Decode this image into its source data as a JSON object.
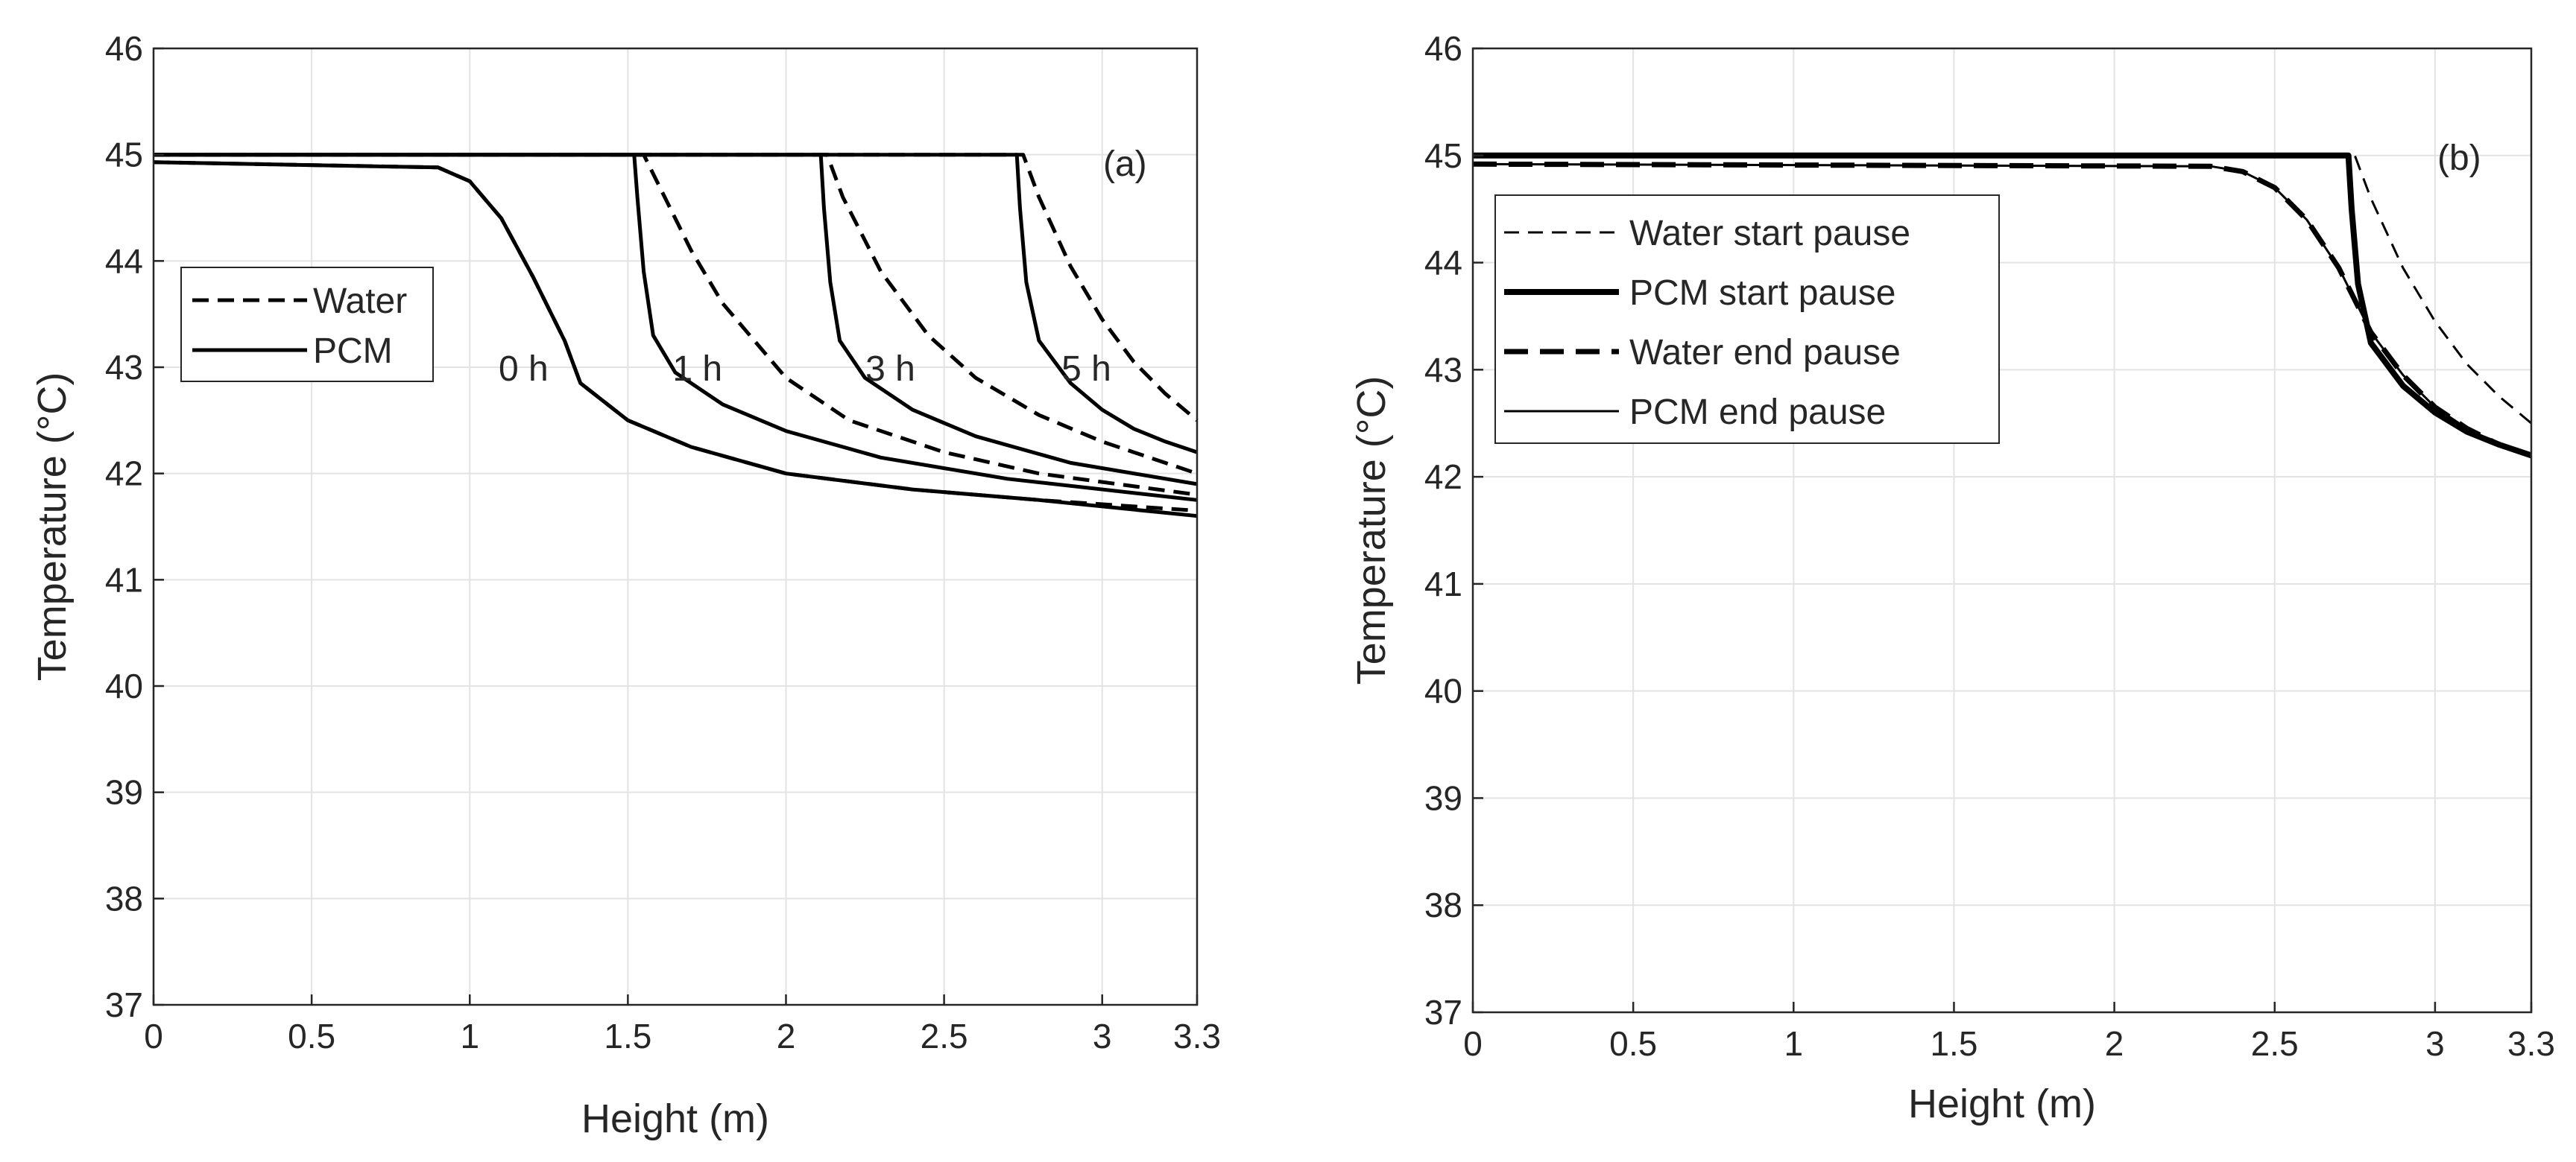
{
  "colors": {
    "line": "#000000",
    "grid": "#e3e3e3",
    "axis": "#262626",
    "background": "#ffffff"
  },
  "chart_data": [
    {
      "type": "line",
      "panel_label": "(a)",
      "xlabel": "Height (m)",
      "ylabel": "Temperature (°C)",
      "xlim": [
        0,
        3.3
      ],
      "ylim": [
        37,
        46
      ],
      "xticks": [
        0,
        0.5,
        1,
        1.5,
        2,
        2.5,
        3,
        3.3
      ],
      "xtick_labels": [
        "0",
        "0.5",
        "1",
        "1.5",
        "2",
        "2.5",
        "3",
        "3.3"
      ],
      "yticks": [
        37,
        38,
        39,
        40,
        41,
        42,
        43,
        44,
        45,
        46
      ],
      "ytick_labels": [
        "37",
        "38",
        "39",
        "40",
        "41",
        "42",
        "43",
        "44",
        "45",
        "46"
      ],
      "grid": true,
      "legend": {
        "position": "top-left",
        "entries": [
          {
            "label": "Water",
            "style": "dashed"
          },
          {
            "label": "PCM",
            "style": "solid"
          }
        ]
      },
      "annotations": [
        {
          "text": "0 h",
          "x": 1.17,
          "y": 43.0
        },
        {
          "text": "1 h",
          "x": 1.72,
          "y": 43.0
        },
        {
          "text": "3 h",
          "x": 2.33,
          "y": 43.0
        },
        {
          "text": "5 h",
          "x": 2.95,
          "y": 43.0
        }
      ],
      "series": [
        {
          "name": "Water 0 h",
          "style": "dashed",
          "width": 5,
          "x": [
            0,
            0.9,
            1.0,
            1.1,
            1.2,
            1.3,
            1.35,
            1.5,
            1.7,
            2.0,
            2.4,
            2.8,
            3.3
          ],
          "y": [
            44.93,
            44.88,
            44.75,
            44.4,
            43.85,
            43.25,
            42.85,
            42.5,
            42.25,
            42.0,
            41.85,
            41.75,
            41.65
          ]
        },
        {
          "name": "PCM 0 h",
          "style": "solid",
          "width": 5,
          "x": [
            0,
            0.9,
            1.0,
            1.1,
            1.2,
            1.3,
            1.35,
            1.5,
            1.7,
            2.0,
            2.4,
            2.8,
            3.3
          ],
          "y": [
            44.93,
            44.88,
            44.75,
            44.4,
            43.85,
            43.25,
            42.85,
            42.5,
            42.25,
            42.0,
            41.85,
            41.75,
            41.6
          ]
        },
        {
          "name": "Water 1 h",
          "style": "dashed",
          "width": 5,
          "x": [
            0,
            1.55,
            1.6,
            1.7,
            1.8,
            2.0,
            2.2,
            2.5,
            2.8,
            3.3
          ],
          "y": [
            45,
            45,
            44.7,
            44.1,
            43.6,
            42.9,
            42.5,
            42.2,
            42.0,
            41.8
          ]
        },
        {
          "name": "PCM 1 h",
          "style": "solid",
          "width": 5,
          "x": [
            0,
            1.52,
            1.53,
            1.55,
            1.58,
            1.65,
            1.8,
            2.0,
            2.3,
            2.7,
            3.3
          ],
          "y": [
            45,
            45,
            44.6,
            43.9,
            43.3,
            42.95,
            42.65,
            42.4,
            42.15,
            41.95,
            41.75
          ]
        },
        {
          "name": "Water 3 h",
          "style": "dashed",
          "width": 5,
          "x": [
            0,
            2.13,
            2.18,
            2.3,
            2.45,
            2.6,
            2.8,
            3.0,
            3.3
          ],
          "y": [
            45,
            45,
            44.6,
            43.9,
            43.3,
            42.9,
            42.55,
            42.3,
            42.0
          ]
        },
        {
          "name": "PCM 3 h",
          "style": "solid",
          "width": 5,
          "x": [
            0,
            2.11,
            2.12,
            2.14,
            2.17,
            2.25,
            2.4,
            2.6,
            2.9,
            3.3
          ],
          "y": [
            45,
            45,
            44.5,
            43.8,
            43.25,
            42.9,
            42.6,
            42.35,
            42.1,
            41.9
          ]
        },
        {
          "name": "Water 5 h",
          "style": "dashed",
          "width": 5,
          "x": [
            0,
            2.75,
            2.8,
            2.9,
            3.0,
            3.1,
            3.2,
            3.3
          ],
          "y": [
            45,
            45,
            44.6,
            43.95,
            43.45,
            43.05,
            42.75,
            42.5
          ]
        },
        {
          "name": "PCM 5 h",
          "style": "solid",
          "width": 5,
          "x": [
            0,
            2.73,
            2.74,
            2.76,
            2.8,
            2.9,
            3.0,
            3.1,
            3.2,
            3.3
          ],
          "y": [
            45,
            45,
            44.5,
            43.8,
            43.25,
            42.85,
            42.6,
            42.42,
            42.3,
            42.2
          ]
        }
      ]
    },
    {
      "type": "line",
      "panel_label": "(b)",
      "xlabel": "Height (m)",
      "ylabel": "Temperature (°C)",
      "xlim": [
        0,
        3.3
      ],
      "ylim": [
        37,
        46
      ],
      "xticks": [
        0,
        0.5,
        1,
        1.5,
        2,
        2.5,
        3,
        3.3
      ],
      "xtick_labels": [
        "0",
        "0.5",
        "1",
        "1.5",
        "2",
        "2.5",
        "3",
        "3.3"
      ],
      "yticks": [
        37,
        38,
        39,
        40,
        41,
        42,
        43,
        44,
        45,
        46
      ],
      "ytick_labels": [
        "37",
        "38",
        "39",
        "40",
        "41",
        "42",
        "43",
        "44",
        "45",
        "46"
      ],
      "grid": true,
      "legend": {
        "position": "top-left",
        "entries": [
          {
            "label": "Water start pause",
            "style": "dashed-thin"
          },
          {
            "label": "PCM start pause",
            "style": "solid-thick"
          },
          {
            "label": "Water end pause",
            "style": "dashed-thick"
          },
          {
            "label": "PCM end pause",
            "style": "solid-thin"
          }
        ]
      },
      "series": [
        {
          "name": "Water start pause",
          "style": "dashed-thin",
          "width": 3,
          "x": [
            0,
            2.75,
            2.8,
            2.9,
            3.0,
            3.1,
            3.2,
            3.3
          ],
          "y": [
            45,
            45,
            44.6,
            43.95,
            43.45,
            43.05,
            42.75,
            42.5
          ]
        },
        {
          "name": "PCM start pause",
          "style": "solid-thick",
          "width": 8,
          "x": [
            0,
            2.73,
            2.74,
            2.76,
            2.8,
            2.9,
            3.0,
            3.1,
            3.2,
            3.3
          ],
          "y": [
            45,
            45,
            44.5,
            43.8,
            43.25,
            42.85,
            42.6,
            42.42,
            42.3,
            42.2
          ]
        },
        {
          "name": "Water end pause",
          "style": "dashed-thick",
          "width": 7,
          "x": [
            0,
            2.3,
            2.4,
            2.5,
            2.6,
            2.7,
            2.8,
            2.9,
            3.0,
            3.1,
            3.2,
            3.3
          ],
          "y": [
            44.92,
            44.9,
            44.85,
            44.7,
            44.4,
            43.95,
            43.35,
            42.95,
            42.65,
            42.45,
            42.3,
            42.2
          ]
        },
        {
          "name": "PCM end pause",
          "style": "solid-thin",
          "width": 3,
          "x": [
            0,
            2.3,
            2.4,
            2.5,
            2.6,
            2.7,
            2.8,
            2.9,
            3.0,
            3.1,
            3.2,
            3.3
          ],
          "y": [
            44.92,
            44.9,
            44.85,
            44.7,
            44.4,
            43.95,
            43.35,
            42.95,
            42.65,
            42.45,
            42.3,
            42.2
          ]
        }
      ]
    }
  ]
}
